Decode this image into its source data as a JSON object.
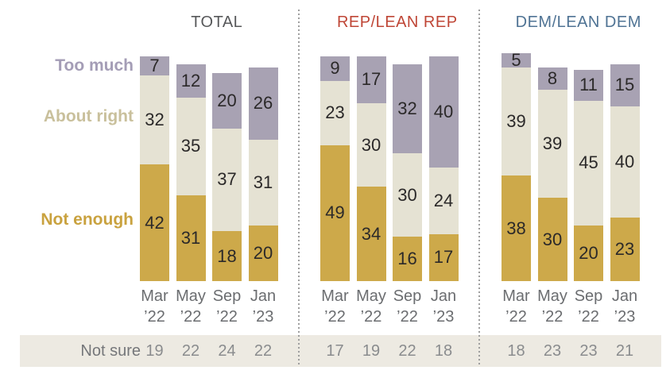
{
  "chart_data": {
    "type": "bar",
    "stacked": true,
    "unit": "percent",
    "categories": [
      {
        "line1": "Mar",
        "line2": "’22"
      },
      {
        "line1": "May",
        "line2": "’22"
      },
      {
        "line1": "Sep",
        "line2": "’22"
      },
      {
        "line1": "Jan",
        "line2": "’23"
      }
    ],
    "legend": {
      "too_much": "Too much",
      "about_right": "About right",
      "not_enough": "Not enough"
    },
    "not_sure_label": "Not sure",
    "colors": {
      "too_much": "#a8a2b3",
      "about_right": "#e5e2d3",
      "not_enough": "#cda94a",
      "strip_bg": "#edeae2",
      "value_text": "#2b2929",
      "axis_text": "#6b6d70",
      "legend_too_much": "#a49db6",
      "legend_about_right": "#c9c09c",
      "legend_not_enough": "#c9a23f"
    },
    "groups": [
      {
        "title": "TOTAL",
        "title_color": "#57585a",
        "series": [
          {
            "key": "too_much",
            "name": "Too much",
            "values": [
              7,
              12,
              20,
              26
            ]
          },
          {
            "key": "about_right",
            "name": "About right",
            "values": [
              32,
              35,
              37,
              31
            ]
          },
          {
            "key": "not_enough",
            "name": "Not enough",
            "values": [
              42,
              31,
              18,
              20
            ]
          }
        ],
        "not_sure": [
          19,
          22,
          24,
          22
        ]
      },
      {
        "title": "REP/LEAN REP",
        "title_color": "#bf4636",
        "series": [
          {
            "key": "too_much",
            "name": "Too much",
            "values": [
              9,
              17,
              32,
              40
            ]
          },
          {
            "key": "about_right",
            "name": "About right",
            "values": [
              23,
              30,
              30,
              24
            ]
          },
          {
            "key": "not_enough",
            "name": "Not enough",
            "values": [
              49,
              34,
              16,
              17
            ]
          }
        ],
        "not_sure": [
          17,
          19,
          22,
          18
        ]
      },
      {
        "title": "DEM/LEAN DEM",
        "title_color": "#4f7394",
        "series": [
          {
            "key": "too_much",
            "name": "Too much",
            "values": [
              5,
              8,
              11,
              15
            ]
          },
          {
            "key": "about_right",
            "name": "About right",
            "values": [
              39,
              39,
              45,
              40
            ]
          },
          {
            "key": "not_enough",
            "name": "Not enough",
            "values": [
              38,
              30,
              20,
              23
            ]
          }
        ],
        "not_sure": [
          18,
          23,
          23,
          21
        ]
      }
    ]
  }
}
